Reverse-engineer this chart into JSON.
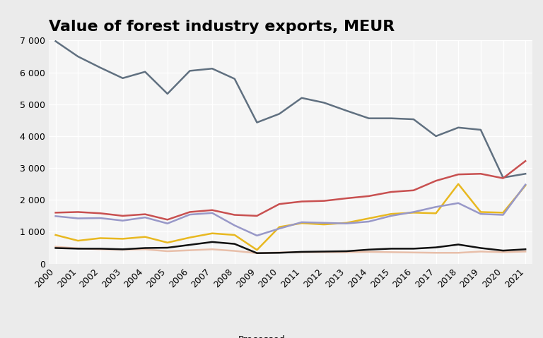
{
  "title": "Value of forest industry exports, MEUR",
  "background_color": "#ebebeb",
  "plot_background": "#f5f5f5",
  "years": [
    2000,
    2001,
    2002,
    2003,
    2004,
    2005,
    2006,
    2007,
    2008,
    2009,
    2010,
    2011,
    2012,
    2013,
    2014,
    2015,
    2016,
    2017,
    2018,
    2019,
    2020,
    2021
  ],
  "series": {
    "Paper": {
      "color": "#607080",
      "values": [
        6980,
        6500,
        6150,
        5820,
        6020,
        5330,
        6050,
        6120,
        5800,
        4430,
        4700,
        5200,
        5050,
        4800,
        4560,
        4560,
        4530,
        4000,
        4270,
        4200,
        2700,
        2820
      ]
    },
    "Paperboard": {
      "color": "#c85050",
      "values": [
        1600,
        1620,
        1580,
        1500,
        1550,
        1380,
        1620,
        1680,
        1530,
        1500,
        1870,
        1950,
        1970,
        2050,
        2120,
        2250,
        2300,
        2600,
        2800,
        2820,
        2680,
        3220
      ]
    },
    "Pulp": {
      "color": "#e8b820",
      "values": [
        900,
        720,
        800,
        780,
        840,
        660,
        820,
        950,
        900,
        430,
        1150,
        1270,
        1230,
        1280,
        1420,
        1560,
        1600,
        1580,
        2500,
        1620,
        1600,
        2450
      ]
    },
    "Processed wood products": {
      "color": "#e8bfaa",
      "values": [
        530,
        480,
        450,
        440,
        450,
        390,
        420,
        450,
        400,
        330,
        350,
        360,
        360,
        360,
        370,
        360,
        350,
        340,
        340,
        380,
        360,
        380
      ]
    },
    "Sawn and planed wood": {
      "color": "#9898c8",
      "values": [
        1490,
        1420,
        1430,
        1350,
        1450,
        1260,
        1540,
        1590,
        1200,
        880,
        1100,
        1300,
        1280,
        1260,
        1320,
        1500,
        1620,
        1780,
        1900,
        1560,
        1530,
        2480
      ]
    },
    "Wood panels": {
      "color": "#101010",
      "values": [
        490,
        470,
        470,
        450,
        490,
        500,
        590,
        680,
        620,
        330,
        340,
        370,
        380,
        390,
        440,
        470,
        470,
        510,
        600,
        490,
        410,
        450
      ]
    }
  },
  "ylim": [
    0,
    7000
  ],
  "yticks": [
    0,
    1000,
    2000,
    3000,
    4000,
    5000,
    6000,
    7000
  ],
  "title_fontsize": 16,
  "legend_fontsize": 9.5,
  "tick_fontsize": 9
}
